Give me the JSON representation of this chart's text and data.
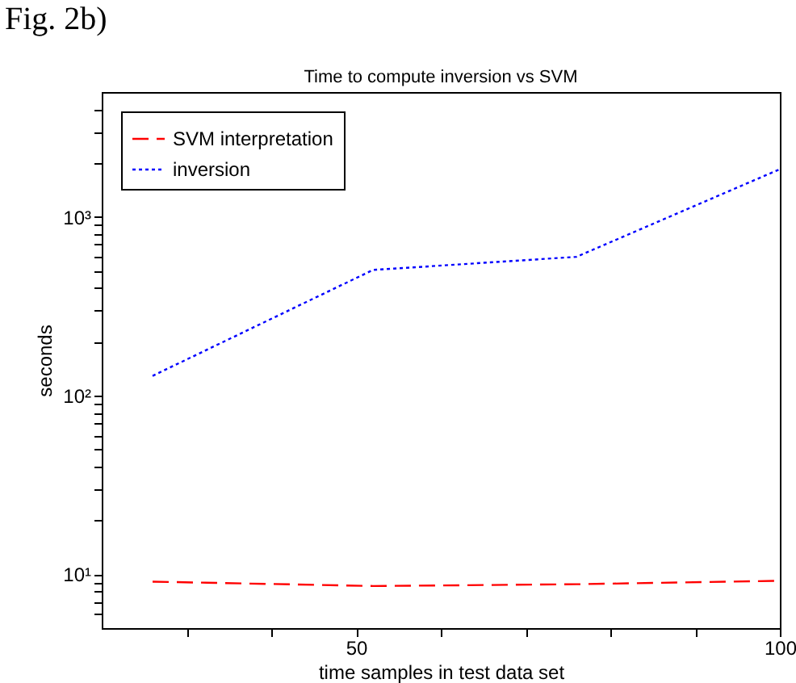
{
  "chart_data": {
    "type": "line",
    "title": "Time to compute inversion vs SVM",
    "xlabel": "time samples in test data set",
    "ylabel": "seconds",
    "annotations": [
      "Fig. 2b)"
    ],
    "x": [
      26,
      52,
      76,
      100
    ],
    "series": [
      {
        "name": "SVM interpretation",
        "color": "#ff0000",
        "line_style": "dashed",
        "values": [
          9.1,
          8.6,
          8.8,
          9.2
        ]
      },
      {
        "name": "inversion",
        "color": "#0000ff",
        "line_style": "dotted",
        "values": [
          129,
          505,
          598,
          1850
        ]
      }
    ],
    "xlim": [
      20,
      100
    ],
    "xticks": [
      {
        "value": 30,
        "label": null
      },
      {
        "value": 40,
        "label": null
      },
      50,
      {
        "value": 60,
        "label": null
      },
      {
        "value": 70,
        "label": null
      },
      {
        "value": 80,
        "label": null
      },
      {
        "value": 90,
        "label": null
      },
      100
    ],
    "ylim": [
      5,
      5000
    ],
    "log": true,
    "yticks": [
      {
        "value": 6,
        "label": null
      },
      {
        "value": 7,
        "label": null
      },
      {
        "value": 8,
        "label": null
      },
      {
        "value": 9,
        "label": null
      },
      {
        "value": 10,
        "label": "10¹"
      },
      {
        "value": 20,
        "label": null
      },
      {
        "value": 30,
        "label": null
      },
      {
        "value": 40,
        "label": null
      },
      {
        "value": 50,
        "label": null
      },
      {
        "value": 60,
        "label": null
      },
      {
        "value": 70,
        "label": null
      },
      {
        "value": 80,
        "label": null
      },
      {
        "value": 90,
        "label": null
      },
      {
        "value": 100,
        "label": "10²"
      },
      {
        "value": 200,
        "label": null
      },
      {
        "value": 300,
        "label": null
      },
      {
        "value": 400,
        "label": null
      },
      {
        "value": 500,
        "label": null
      },
      {
        "value": 600,
        "label": null
      },
      {
        "value": 700,
        "label": null
      },
      {
        "value": 800,
        "label": null
      },
      {
        "value": 900,
        "label": null
      },
      {
        "value": 1000,
        "label": "10³"
      },
      {
        "value": 2000,
        "label": null
      },
      {
        "value": 3000,
        "label": null
      },
      {
        "value": 4000,
        "label": null
      }
    ],
    "grid": false,
    "legend": "top left"
  }
}
